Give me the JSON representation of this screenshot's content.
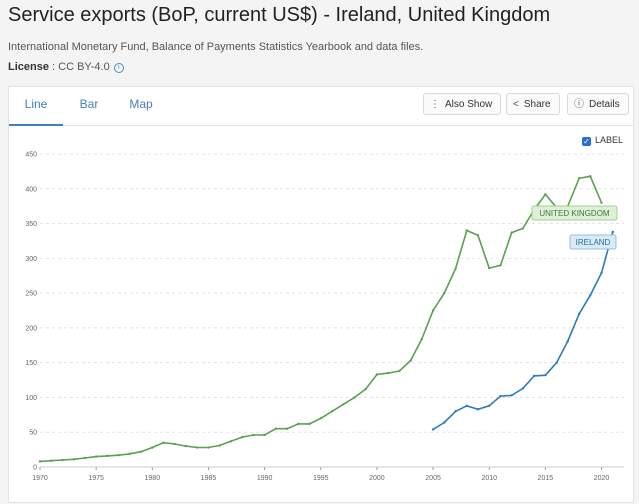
{
  "header": {
    "title": "Service exports (BoP, current US$) - Ireland, United Kingdom",
    "source": "International Monetary Fund, Balance of Payments Statistics Yearbook and data files.",
    "license_label": "License",
    "license_value": ": CC BY-4.0"
  },
  "tabs": [
    "Line",
    "Bar",
    "Map"
  ],
  "toolbar": {
    "also_show": "Also Show",
    "share": "Share",
    "details": "Details",
    "label_toggle": "LABEL"
  },
  "colors": {
    "uk": "#5aa150",
    "ireland": "#2f7ab8"
  },
  "chart_data": {
    "type": "line",
    "y_ticks": [
      0,
      50,
      100,
      150,
      200,
      250,
      300,
      350,
      400,
      450
    ],
    "x_ticks": [
      1970,
      1975,
      1980,
      1985,
      1990,
      1995,
      2000,
      2005,
      2010,
      2015,
      2020
    ],
    "ylim": [
      0,
      450
    ],
    "xlim": [
      1970,
      2022
    ],
    "grid": true,
    "series": [
      {
        "name": "UNITED KINGDOM",
        "x": [
          1970,
          1971,
          1972,
          1973,
          1974,
          1975,
          1976,
          1977,
          1978,
          1979,
          1980,
          1981,
          1982,
          1983,
          1984,
          1985,
          1986,
          1987,
          1988,
          1989,
          1990,
          1991,
          1992,
          1993,
          1994,
          1995,
          1996,
          1997,
          1998,
          1999,
          2000,
          2001,
          2002,
          2003,
          2004,
          2005,
          2006,
          2007,
          2008,
          2009,
          2010,
          2011,
          2012,
          2013,
          2014,
          2015,
          2016,
          2017,
          2018,
          2019,
          2020
        ],
        "values": [
          8,
          9,
          10,
          11,
          13,
          15,
          16,
          17,
          19,
          22,
          28,
          35,
          33,
          30,
          28,
          28,
          31,
          37,
          43,
          46,
          46,
          55,
          55,
          62,
          62,
          70,
          80,
          90,
          100,
          112,
          133,
          135,
          138,
          153,
          184,
          225,
          250,
          285,
          340,
          333,
          286,
          290,
          337,
          343,
          370,
          392,
          373,
          375,
          415,
          418,
          380
        ]
      },
      {
        "name": "IRELAND",
        "x": [
          2005,
          2006,
          2007,
          2008,
          2009,
          2010,
          2011,
          2012,
          2013,
          2014,
          2015,
          2016,
          2017,
          2018,
          2019,
          2020,
          2021
        ],
        "values": [
          54,
          64,
          80,
          88,
          83,
          88,
          102,
          103,
          113,
          131,
          132,
          150,
          181,
          220,
          247,
          279,
          338
        ]
      }
    ]
  }
}
